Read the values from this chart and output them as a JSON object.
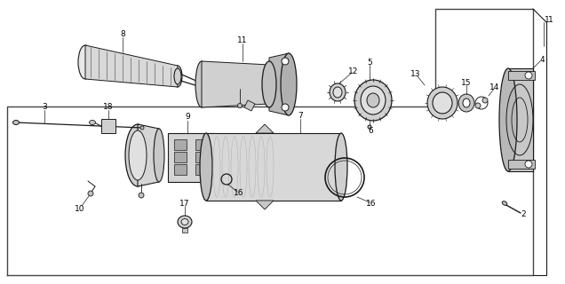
{
  "bg": "#ffffff",
  "dc": "#1a1a1a",
  "lc": "#333333",
  "lw": 0.7,
  "fs": 6.5
}
